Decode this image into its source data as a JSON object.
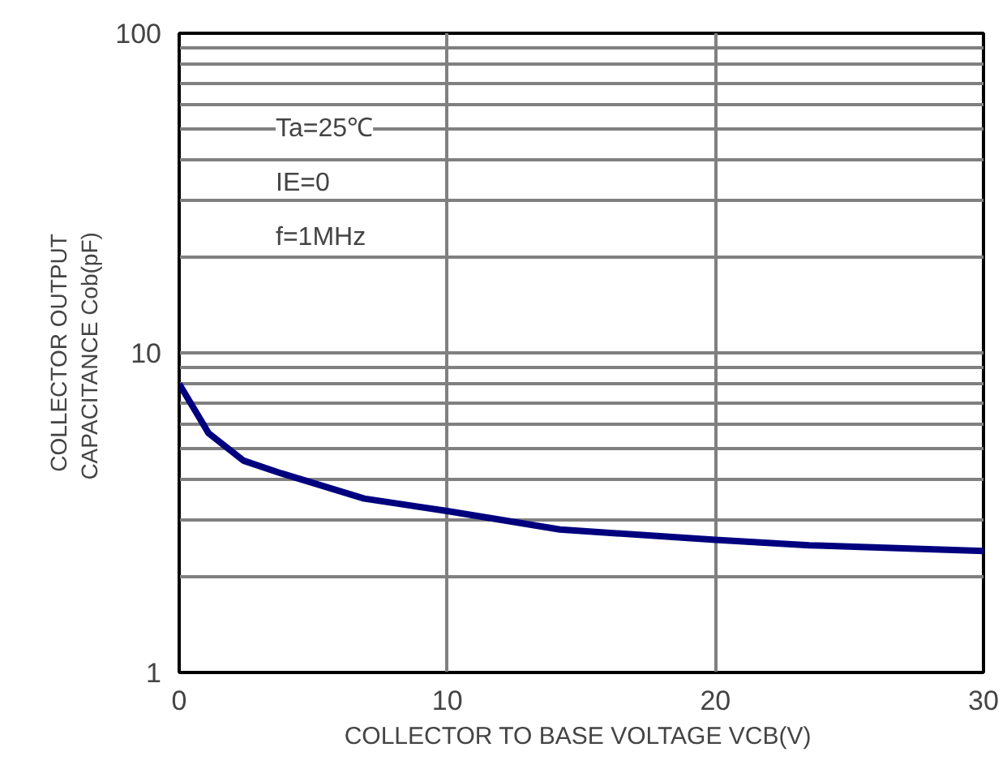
{
  "chart_data": {
    "type": "line",
    "xlabel": "COLLECTOR TO BASE VOLTAGE  VCB(V)",
    "ylabel": "COLLECTOR OUTPUT\nCAPACITANCE  Cob(pF)",
    "annotations": [
      "Ta=25℃",
      "IE=0",
      "f=1MHz"
    ],
    "x": [
      0,
      1.1,
      2.4,
      3.8,
      6.9,
      10,
      14.2,
      20,
      23.5,
      30
    ],
    "series": [
      {
        "color": "#00007f",
        "values": [
          8.0,
          5.6,
          4.6,
          4.2,
          3.5,
          3.2,
          2.8,
          2.6,
          2.5,
          2.4
        ]
      }
    ],
    "xlim": [
      0,
      30
    ],
    "xticks": [
      0,
      10,
      20,
      30
    ],
    "ylim": [
      1,
      100
    ],
    "log": "y",
    "yticks": [
      1,
      {
        "value": 2,
        "label": null
      },
      {
        "value": 3,
        "label": null
      },
      {
        "value": 4,
        "label": null
      },
      {
        "value": 5,
        "label": null
      },
      {
        "value": 6,
        "label": null
      },
      {
        "value": 7,
        "label": null
      },
      {
        "value": 8,
        "label": null
      },
      {
        "value": 9,
        "label": null
      },
      10,
      {
        "value": 20,
        "label": null
      },
      {
        "value": 30,
        "label": null
      },
      {
        "value": 40,
        "label": null
      },
      {
        "value": 50,
        "label": null
      },
      {
        "value": 60,
        "label": null
      },
      {
        "value": 70,
        "label": null
      },
      {
        "value": 80,
        "label": null
      },
      {
        "value": 90,
        "label": null
      },
      100
    ],
    "grid": true,
    "line_style": "solid",
    "marker": "none"
  }
}
